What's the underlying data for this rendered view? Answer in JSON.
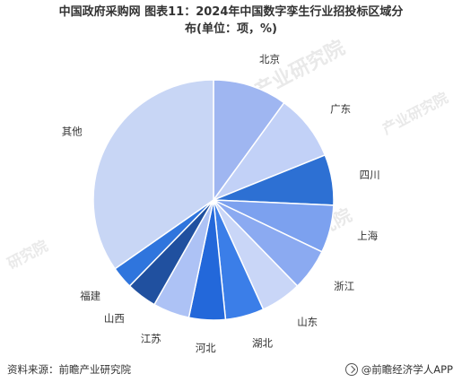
{
  "title_line1": "中国政府采购网 图表11：2024年中国数字孪生行业招投标区域分",
  "title_line2": "布(单位：项，%)",
  "source": "资料来源：前瞻产业研究院",
  "brand": "@前瞻经济学人APP",
  "chart_data": {
    "type": "pie",
    "title": "中国政府采购网 图表11：2024年中国数字孪生行业招投标区域分布(单位：项，%)",
    "unit": "%",
    "start_angle_deg": 0,
    "direction": "clockwise",
    "categories": [
      "北京",
      "广东",
      "四川",
      "上海",
      "浙江",
      "山东",
      "湖北",
      "河北",
      "江苏",
      "山西",
      "福建",
      "其他"
    ],
    "values": [
      10.0,
      8.9,
      6.8,
      6.4,
      5.6,
      5.5,
      5.2,
      4.9,
      4.9,
      4.1,
      3.0,
      34.7
    ],
    "colors": [
      "#9fb6f1",
      "#c2d1f7",
      "#2d70d3",
      "#7ca1ef",
      "#8baaf1",
      "#c9d6f7",
      "#3b7ee8",
      "#2368da",
      "#adc2f5",
      "#20509f",
      "#2f75dd",
      "#c8d6f5"
    ]
  }
}
